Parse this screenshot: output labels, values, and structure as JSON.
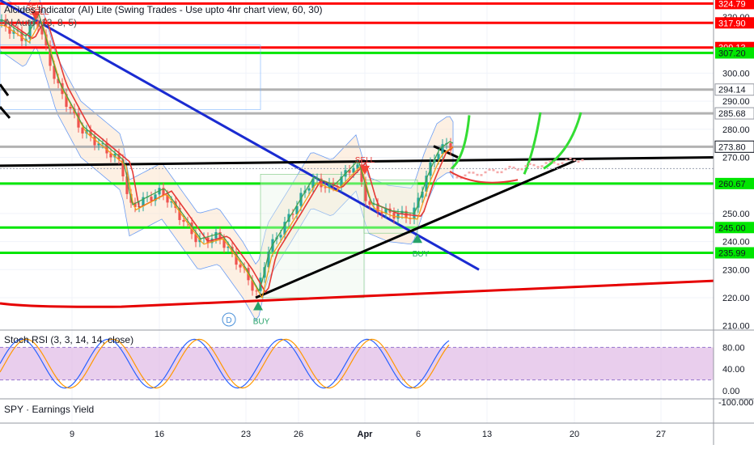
{
  "header": {
    "indicator_title": "Alcides Indicator (AI) Lite (Swing Trades - Use upto 4hr chart view, 60, 30)",
    "sub_indicator": "AI Auto (13, 8, 5)",
    "watermark": "SELL"
  },
  "rsi_pane": {
    "title": "Stoch RSI (3, 3, 14, 14, close)"
  },
  "earnings_pane": {
    "title": "SPY · Earnings Yield",
    "axis_label": "-100.000"
  },
  "chart_data": [
    {
      "type": "candlestick",
      "symbol": "SPY",
      "ylim": [
        210,
        327
      ],
      "y_ticks": [
        "220.00",
        "230.00",
        "240.00",
        "250.00",
        "260.00",
        "270.00",
        "280.00",
        "290.00",
        "300.00",
        "320.00",
        "210.00"
      ],
      "x_ticks": [
        "9",
        "16",
        "23",
        "26",
        "Apr",
        "6",
        "13",
        "20",
        "27"
      ],
      "price_levels": [
        {
          "label": "324.79",
          "value": 324.79,
          "color": "#ff0000"
        },
        {
          "label": "317.90",
          "value": 317.9,
          "color": "#ff0000"
        },
        {
          "label": "309.13",
          "value": 309.13,
          "color": "#ff0000"
        },
        {
          "label": "307.20",
          "value": 307.2,
          "color": "#00e600"
        },
        {
          "label": "294.14",
          "value": 294.14,
          "color": "#b2b2b2"
        },
        {
          "label": "285.68",
          "value": 285.68,
          "color": "#b2b2b2"
        },
        {
          "label": "273.80",
          "value": 273.8,
          "color": "#b2b2b2"
        },
        {
          "label": "260.67",
          "value": 260.67,
          "color": "#00e600"
        },
        {
          "label": "245.00",
          "value": 245.0,
          "color": "#00e600"
        },
        {
          "label": "235.99",
          "value": 235.99,
          "color": "#00e600"
        }
      ],
      "last_price_label": "273.80",
      "signals": [
        {
          "label": "SELL",
          "x_tick": "9",
          "price": 322
        },
        {
          "label": "SELL",
          "x_tick": "Apr",
          "price": 267
        },
        {
          "label": "BUY",
          "x_tick": "23",
          "price": 219
        },
        {
          "label": "BUY",
          "x_tick": "6",
          "price": 243
        }
      ],
      "marker_d": "D"
    },
    {
      "type": "line",
      "name_title": "Stoch RSI",
      "ylim": [
        -10,
        100
      ],
      "y_ticks": [
        "80.00",
        "40.00",
        "0.00"
      ],
      "band": [
        20,
        80
      ]
    }
  ]
}
